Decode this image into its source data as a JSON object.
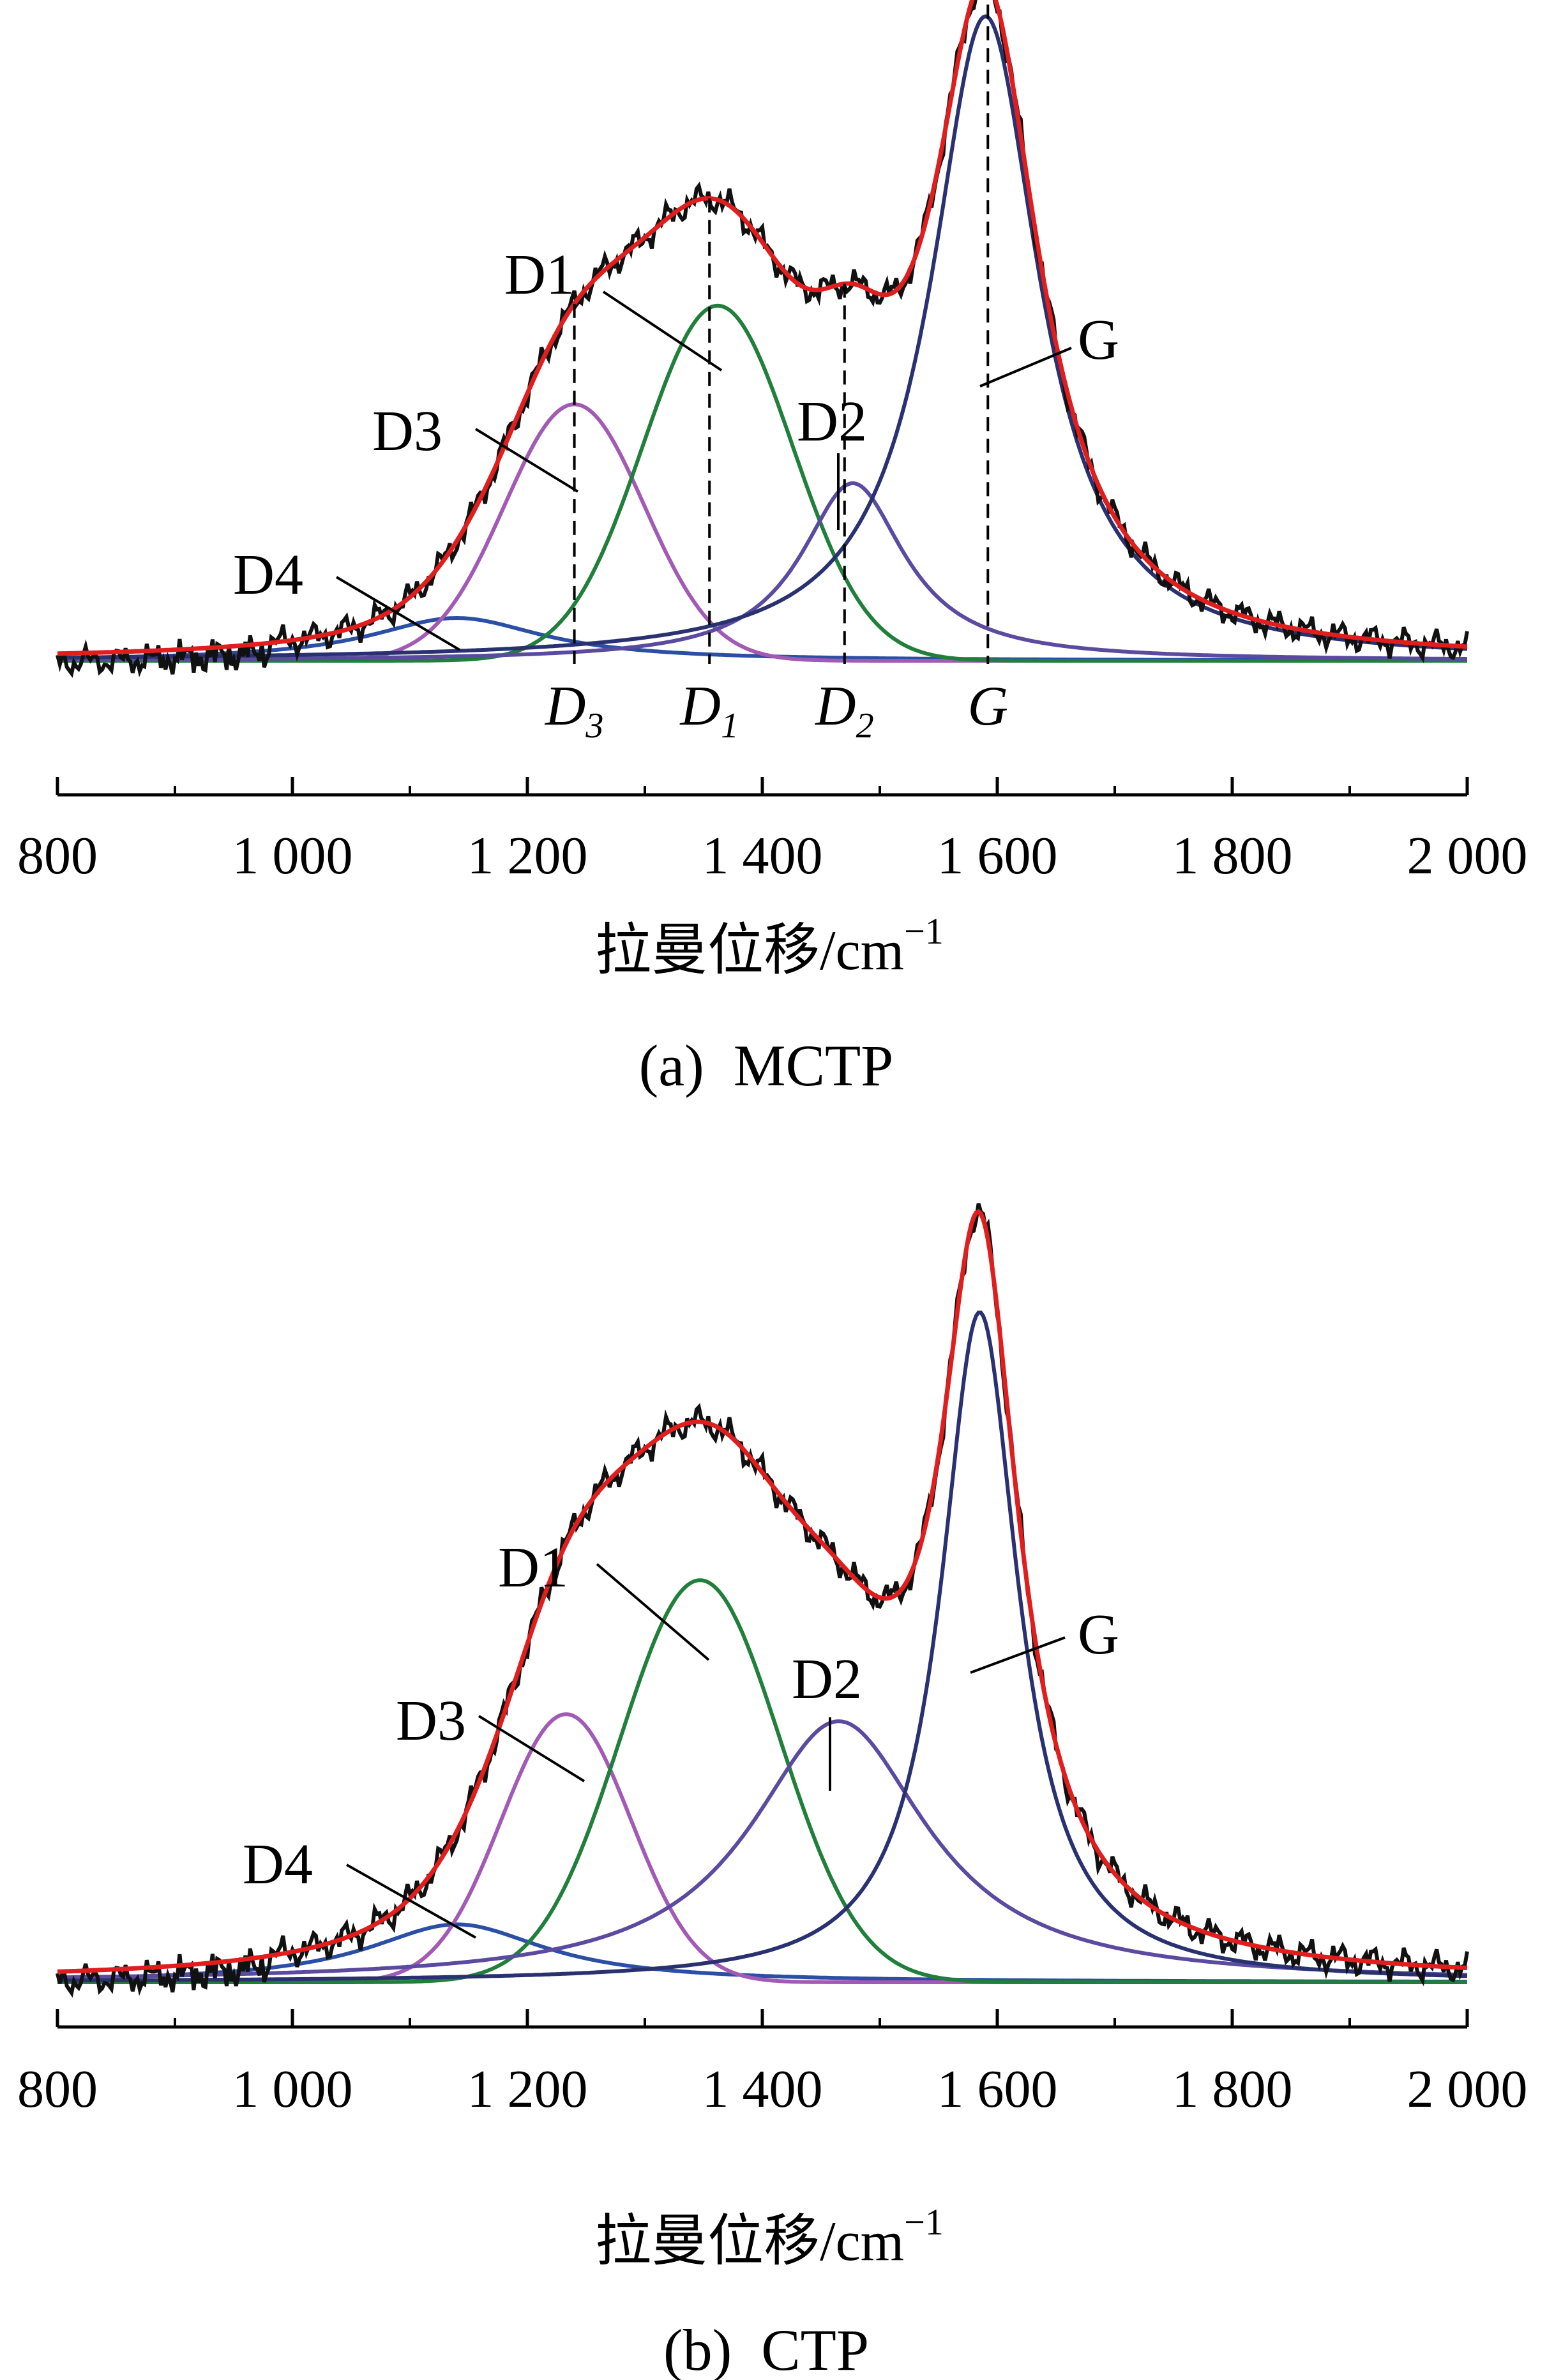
{
  "chart_data": [
    {
      "type": "line",
      "panel_caption": "(a)  MCTP",
      "xlabel": "拉曼位移/cm",
      "xlabel_sup": "−1",
      "xlim": [
        800,
        2000
      ],
      "xticks": [
        800,
        1000,
        1200,
        1400,
        1600,
        1800,
        2000
      ],
      "xtick_labels": [
        "800",
        "1 000",
        "1 200",
        "1 400",
        "1 600",
        "1 800",
        "2 000"
      ],
      "ylim": [
        -0.06,
        1.0
      ],
      "grid": false,
      "legend": "none",
      "peaks": [
        {
          "name": "D4",
          "center": 1140,
          "amplitude": 0.065,
          "width": 90,
          "color": "#2c4fa6"
        },
        {
          "name": "D3",
          "center": 1240,
          "amplitude": 0.39,
          "width": 84,
          "color": "#a25ab4"
        },
        {
          "name": "D1",
          "center": 1362,
          "amplitude": 0.54,
          "width": 90,
          "color": "#217f3c"
        },
        {
          "name": "D2",
          "center": 1477,
          "amplitude": 0.27,
          "width": 54,
          "color": "#5a4aa0"
        },
        {
          "name": "G",
          "center": 1590,
          "amplitude": 0.98,
          "width": 56,
          "color": "#2a3170"
        }
      ],
      "fit_color": "#e01e1e",
      "measured_color": "#111111",
      "band_markers": [
        {
          "label": "D",
          "sub": "3",
          "x": 1240
        },
        {
          "label": "D",
          "sub": "1",
          "x": 1355
        },
        {
          "label": "D",
          "sub": "2",
          "x": 1470
        },
        {
          "label": "G",
          "sub": "",
          "x": 1592
        }
      ],
      "peak_labels": [
        "D4",
        "D3",
        "D1",
        "D2",
        "G"
      ]
    },
    {
      "type": "line",
      "panel_caption": "(b)  CTP",
      "xlabel": "拉曼位移/cm",
      "xlabel_sup": "−1",
      "xlim": [
        800,
        2000
      ],
      "xticks": [
        800,
        1000,
        1200,
        1400,
        1600,
        1800,
        2000
      ],
      "xtick_labels": [
        "800",
        "1 000",
        "1 200",
        "1 400",
        "1 600",
        "1 800",
        "2 000"
      ],
      "ylim": [
        -0.06,
        1.0
      ],
      "grid": false,
      "legend": "none",
      "peaks": [
        {
          "name": "D4",
          "center": 1140,
          "amplitude": 0.082,
          "width": 92,
          "color": "#2c4fa6"
        },
        {
          "name": "D3",
          "center": 1233,
          "amplitude": 0.38,
          "width": 78,
          "color": "#a25ab4"
        },
        {
          "name": "D1",
          "center": 1347,
          "amplitude": 0.57,
          "width": 96,
          "color": "#217f3c"
        },
        {
          "name": "D2",
          "center": 1465,
          "amplitude": 0.37,
          "width": 92,
          "color": "#5a4aa0"
        },
        {
          "name": "G",
          "center": 1585,
          "amplitude": 0.95,
          "width": 40,
          "color": "#2a3170"
        }
      ],
      "fit_color": "#e01e1e",
      "measured_color": "#111111",
      "band_markers": [],
      "peak_labels": [
        "D4",
        "D3",
        "D1",
        "D2",
        "G"
      ]
    }
  ]
}
